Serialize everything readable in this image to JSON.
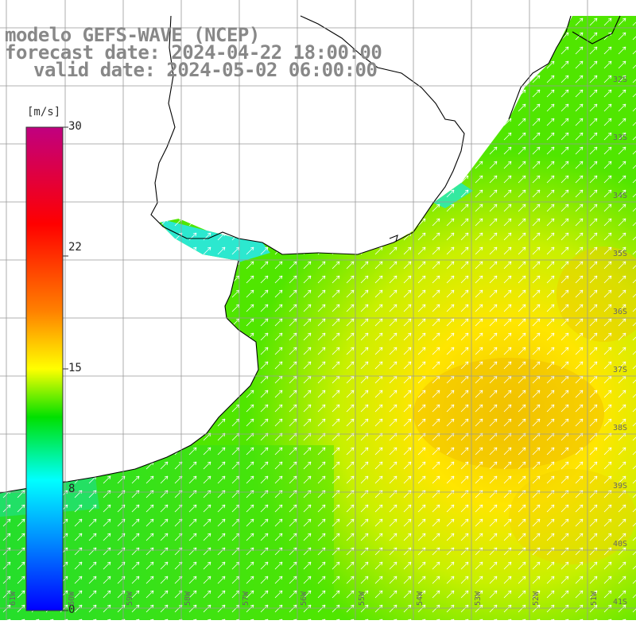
{
  "header": {
    "line1": "modelo GEFS-WAVE (NCEP)",
    "line2": "forecast date: 2024-04-22 18:00:00",
    "line3": "valid date: 2024-05-02 06:00:00"
  },
  "colorbar": {
    "unit": "[m/s]",
    "ticks": [
      "30",
      "22",
      "15",
      "8",
      "0"
    ],
    "min": 0,
    "max": 30,
    "colors": [
      "#0000ff",
      "#00a0ff",
      "#00ffff",
      "#00e000",
      "#ffff00",
      "#ff8000",
      "#ff0000",
      "#c00080"
    ]
  },
  "map": {
    "lat_labels": [
      "32S",
      "33S",
      "34S",
      "35S",
      "36S",
      "37S",
      "38S",
      "39S",
      "40S",
      "41S"
    ],
    "lon_labels": [
      "61W",
      "60W",
      "59W",
      "58W",
      "57W",
      "56W",
      "55W",
      "54W",
      "53W",
      "52W",
      "51W"
    ],
    "ocean_colors": {
      "coastal_cyan": "#28f0e6",
      "green": "#50e600",
      "lime": "#a0f000",
      "yellow": "#ffff00",
      "orange_yellow": "#f0c800"
    },
    "arrow_direction": "north-east",
    "coastline_color": "#000000",
    "grid_color": "#999999"
  }
}
